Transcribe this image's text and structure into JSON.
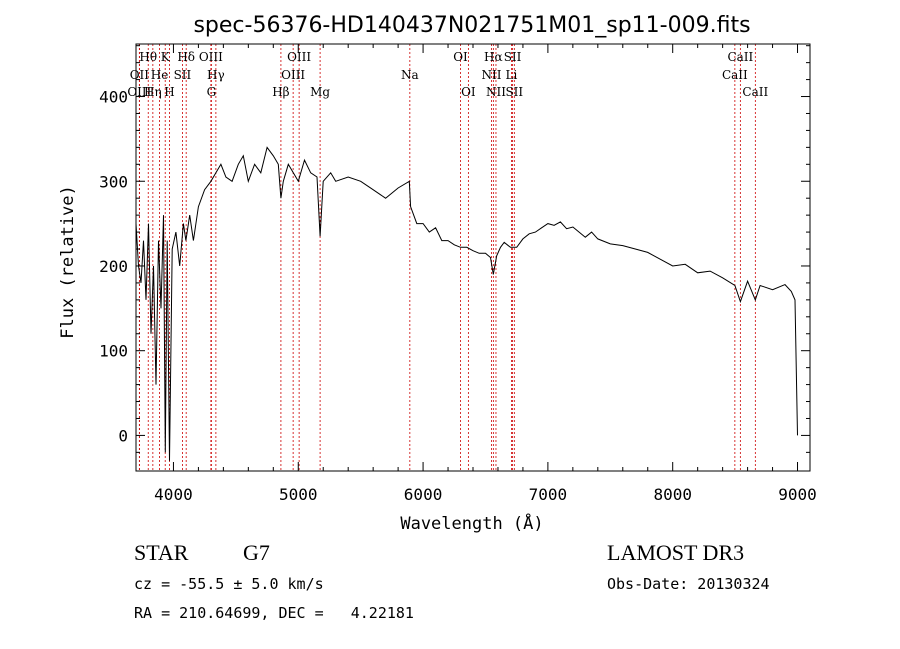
{
  "chart_data": {
    "type": "line",
    "title": "spec-56376-HD140437N021751M01_sp11-009.fits",
    "xlabel": "Wavelength (Å)",
    "ylabel": "Flux (relative)",
    "xlim": [
      3700,
      9100
    ],
    "ylim": [
      -42,
      462
    ],
    "xticks": [
      4000,
      5000,
      6000,
      7000,
      8000,
      9000
    ],
    "yticks": [
      0,
      100,
      200,
      300,
      400
    ],
    "series": [
      {
        "name": "flux",
        "x": [
          3700,
          3720,
          3740,
          3760,
          3780,
          3800,
          3820,
          3840,
          3860,
          3880,
          3900,
          3920,
          3935,
          3950,
          3968,
          3990,
          4020,
          4050,
          4080,
          4100,
          4130,
          4160,
          4200,
          4250,
          4300,
          4340,
          4380,
          4420,
          4470,
          4520,
          4560,
          4600,
          4650,
          4700,
          4750,
          4800,
          4840,
          4861,
          4880,
          4920,
          4960,
          5000,
          5050,
          5100,
          5150,
          5175,
          5200,
          5260,
          5300,
          5400,
          5500,
          5600,
          5700,
          5800,
          5890,
          5900,
          5950,
          6000,
          6050,
          6100,
          6150,
          6200,
          6250,
          6300,
          6350,
          6400,
          6450,
          6500,
          6540,
          6563,
          6590,
          6620,
          6650,
          6700,
          6750,
          6800,
          6850,
          6900,
          6950,
          7000,
          7050,
          7100,
          7150,
          7200,
          7250,
          7300,
          7350,
          7400,
          7500,
          7600,
          7700,
          7800,
          7900,
          8000,
          8100,
          8200,
          8300,
          8400,
          8498,
          8542,
          8600,
          8662,
          8700,
          8800,
          8900,
          8950,
          8980,
          9000
        ],
        "y": [
          250,
          200,
          180,
          230,
          160,
          250,
          120,
          200,
          60,
          230,
          150,
          260,
          -20,
          230,
          -30,
          220,
          240,
          200,
          250,
          230,
          260,
          230,
          270,
          290,
          300,
          310,
          320,
          305,
          300,
          320,
          330,
          300,
          320,
          310,
          340,
          330,
          320,
          280,
          300,
          320,
          310,
          300,
          325,
          310,
          305,
          235,
          300,
          310,
          300,
          305,
          300,
          290,
          280,
          292,
          300,
          270,
          250,
          250,
          240,
          245,
          230,
          230,
          225,
          222,
          222,
          218,
          215,
          215,
          210,
          190,
          212,
          222,
          228,
          222,
          222,
          232,
          238,
          240,
          245,
          250,
          248,
          252,
          244,
          246,
          240,
          234,
          240,
          232,
          226,
          224,
          220,
          216,
          208,
          200,
          202,
          192,
          194,
          186,
          177,
          158,
          182,
          160,
          177,
          172,
          178,
          170,
          160,
          0
        ]
      }
    ],
    "lines": [
      {
        "name": "OII",
        "wl": 3727,
        "row": 1
      },
      {
        "name": "OIII",
        "wl": 3727,
        "row": 2
      },
      {
        "name": "Hθ",
        "wl": 3798,
        "row": 0
      },
      {
        "name": "Hη",
        "wl": 3835,
        "row": 2
      },
      {
        "name": "He",
        "wl": 3889,
        "row": 1
      },
      {
        "name": "K",
        "wl": 3934,
        "row": 0
      },
      {
        "name": "H",
        "wl": 3968,
        "row": 2
      },
      {
        "name": "SII",
        "wl": 4072,
        "row": 1
      },
      {
        "name": "Hδ",
        "wl": 4102,
        "row": 0
      },
      {
        "name": "OIII",
        "wl": 4300,
        "row": 0
      },
      {
        "name": "Hγ",
        "wl": 4340,
        "row": 1
      },
      {
        "name": "G",
        "wl": 4304,
        "row": 2
      },
      {
        "name": "Hβ",
        "wl": 4861,
        "row": 2
      },
      {
        "name": "OIII",
        "wl": 4959,
        "row": 1
      },
      {
        "name": "OIII",
        "wl": 5007,
        "row": 0
      },
      {
        "name": "Mg",
        "wl": 5175,
        "row": 2
      },
      {
        "name": "Na",
        "wl": 5894,
        "row": 1
      },
      {
        "name": "OI",
        "wl": 6300,
        "row": 0
      },
      {
        "name": "OI",
        "wl": 6363,
        "row": 2
      },
      {
        "name": "NII",
        "wl": 6548,
        "row": 1
      },
      {
        "name": "Hα",
        "wl": 6563,
        "row": 0
      },
      {
        "name": "NII",
        "wl": 6584,
        "row": 2
      },
      {
        "name": "Li",
        "wl": 6708,
        "row": 1
      },
      {
        "name": "SII",
        "wl": 6717,
        "row": 0
      },
      {
        "name": "SII",
        "wl": 6731,
        "row": 2
      },
      {
        "name": "CaII",
        "wl": 8498,
        "row": 1
      },
      {
        "name": "CaII",
        "wl": 8542,
        "row": 0
      },
      {
        "name": "CaII",
        "wl": 8662,
        "row": 2
      }
    ]
  },
  "info": {
    "class_label": "STAR",
    "subclass": "G7",
    "survey": "LAMOST DR3",
    "cz": "cz = -55.5 ± 5.0 km/s",
    "obs_date": "Obs-Date: 20130324",
    "radec": "RA = 210.64699, DEC =   4.22181"
  },
  "colors": {
    "axis": "#000000",
    "spectrum": "#000000",
    "line_marker": "#cc0000"
  }
}
